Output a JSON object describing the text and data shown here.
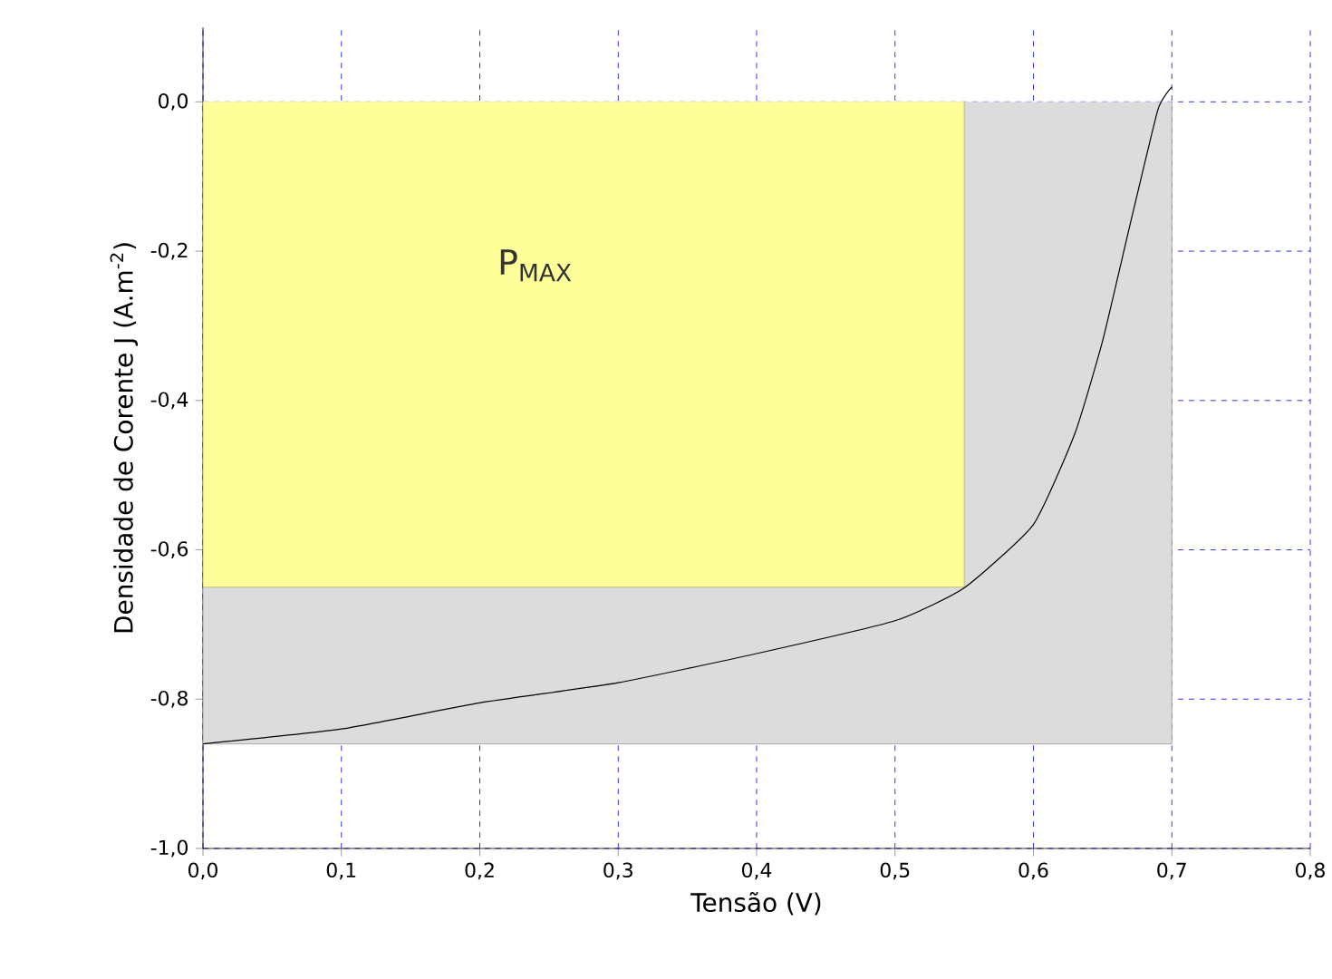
{
  "chart_data": {
    "type": "line",
    "xlabel": "Tensão (V)",
    "ylabel": "Densidade de Corente J (A.m$^{-2}$)",
    "xlim": [
      0,
      0.8
    ],
    "ylim": [
      -1.0,
      0.1
    ],
    "xticks": [
      {
        "value": 0,
        "label": "0,0"
      },
      {
        "value": 0.1,
        "label": "0,1"
      },
      {
        "value": 0.2,
        "label": "0,2"
      },
      {
        "value": 0.3,
        "label": "0,3"
      },
      {
        "value": 0.4,
        "label": "0,4"
      },
      {
        "value": 0.5,
        "label": "0,5"
      },
      {
        "value": 0.6,
        "label": "0,6"
      },
      {
        "value": 0.7,
        "label": "0,7"
      },
      {
        "value": 0.8,
        "label": "0,8"
      }
    ],
    "yticks": [
      {
        "value": -1.0,
        "label": "-1,0"
      },
      {
        "value": -0.8,
        "label": "-0,8"
      },
      {
        "value": -0.6,
        "label": "-0,6"
      },
      {
        "value": -0.4,
        "label": "-0,4"
      },
      {
        "value": -0.2,
        "label": "-0,2"
      },
      {
        "value": 0.0,
        "label": "0,0"
      }
    ],
    "grid": true,
    "series": [
      {
        "type": "area",
        "color": "#dcdcdc",
        "x": [
          0,
          0.7
        ],
        "values": [
          -0.86,
          -0.86
        ]
      },
      {
        "type": "area",
        "color": "#ffff99",
        "x": [
          0,
          0.55
        ],
        "values": [
          -0.65,
          -0.65
        ]
      },
      {
        "color": "#000000",
        "x": [
          0,
          0.1,
          0.2,
          0.3,
          0.4,
          0.5,
          0.55,
          0.6,
          0.63,
          0.65,
          0.67,
          0.69,
          0.7
        ],
        "values": [
          -0.86,
          -0.84,
          -0.805,
          -0.778,
          -0.739,
          -0.695,
          -0.651,
          -0.566,
          -0.444,
          -0.32,
          -0.163,
          -0.01,
          0.02
        ]
      }
    ],
    "annotations": [
      "P$_{MAX}$"
    ]
  }
}
